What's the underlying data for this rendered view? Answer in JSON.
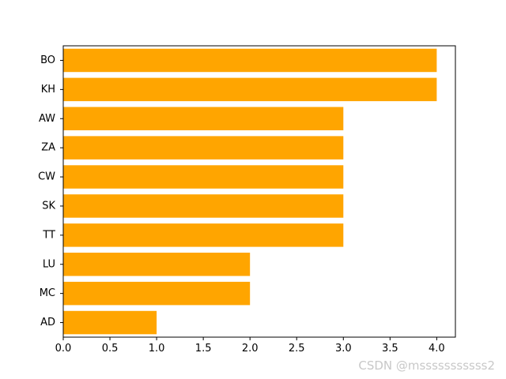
{
  "chart_data": {
    "type": "bar",
    "orientation": "horizontal",
    "categories": [
      "AD",
      "MC",
      "LU",
      "TT",
      "SK",
      "CW",
      "ZA",
      "AW",
      "KH",
      "BO"
    ],
    "values": [
      1,
      2,
      2,
      3,
      3,
      3,
      3,
      3,
      4,
      4
    ],
    "bar_color": "#ffa500",
    "xlim": [
      0,
      4.2
    ],
    "xticks": [
      0.0,
      0.5,
      1.0,
      1.5,
      2.0,
      2.5,
      3.0,
      3.5,
      4.0
    ],
    "xtick_labels": [
      "0.0",
      "0.5",
      "1.0",
      "1.5",
      "2.0",
      "2.5",
      "3.0",
      "3.5",
      "4.0"
    ],
    "title": "",
    "xlabel": "",
    "ylabel": "",
    "grid": false
  },
  "watermark": "CSDN @msssssssssss2"
}
